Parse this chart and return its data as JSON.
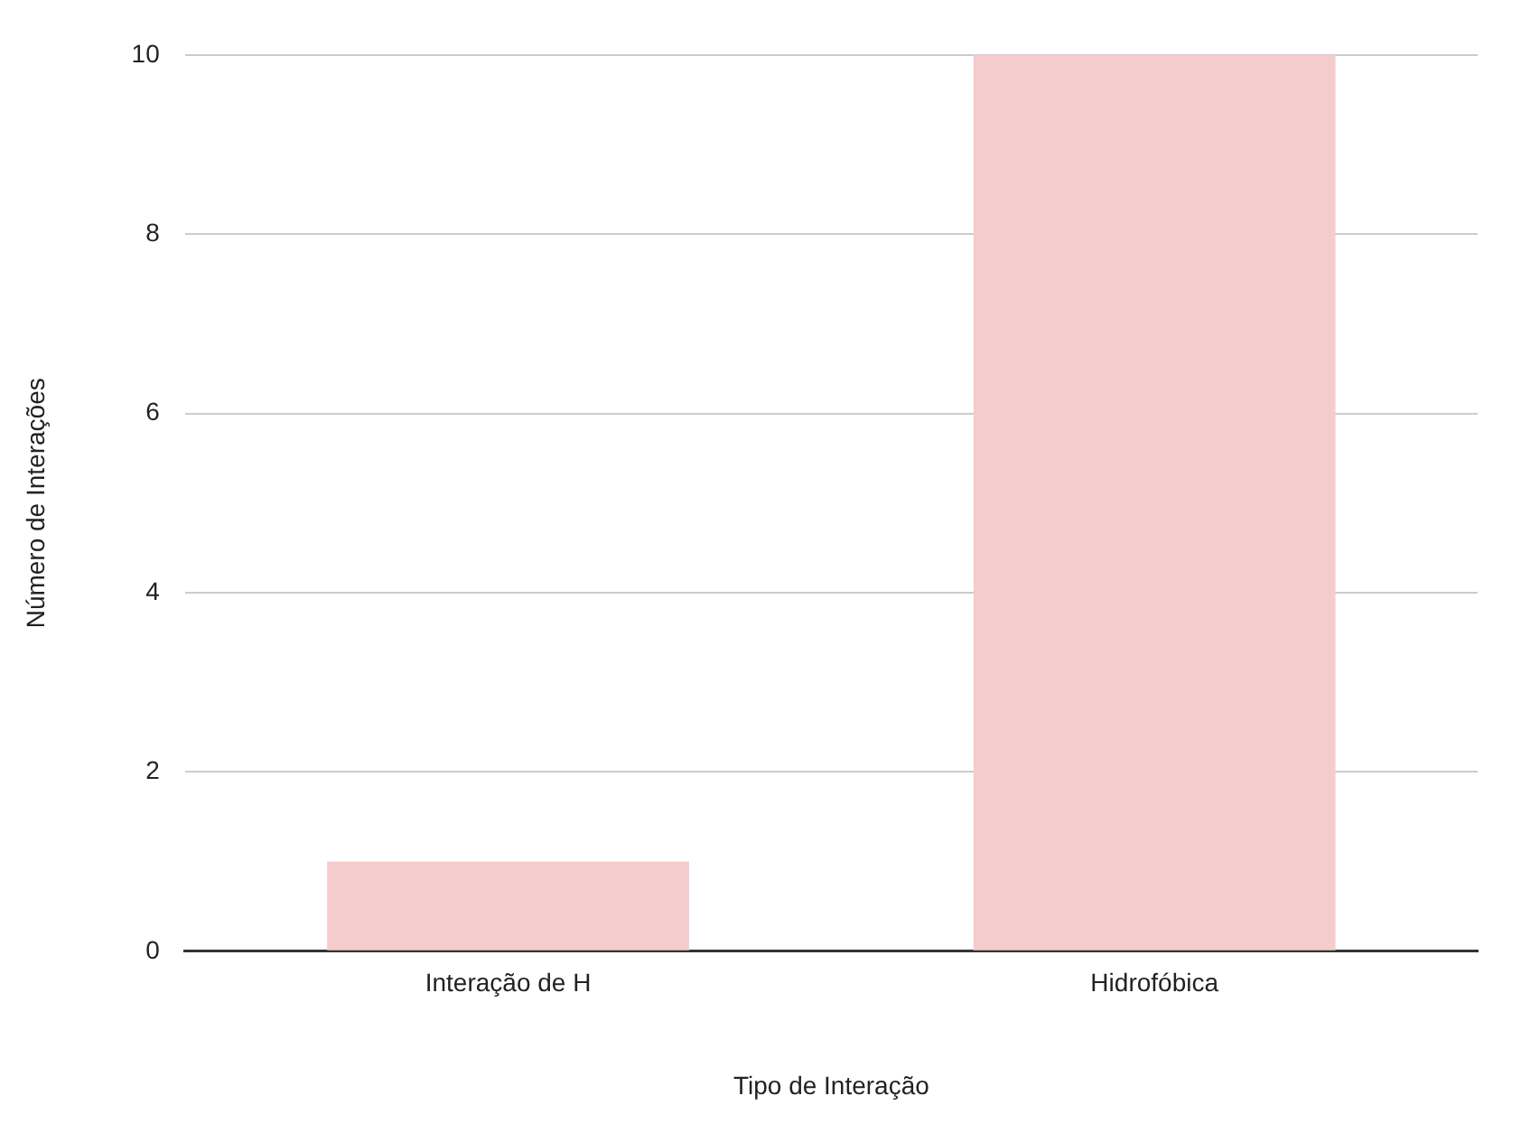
{
  "chart_data": {
    "type": "bar",
    "xlabel": "Tipo de Interação",
    "ylabel": "Número de Interações",
    "categories": [
      "Interação de H",
      "Hidrofóbica"
    ],
    "values": [
      1,
      10
    ],
    "color": "#f4cccc",
    "ylim": [
      0,
      10
    ],
    "yticks": [
      0,
      2,
      4,
      6,
      8,
      10
    ],
    "grid": "y",
    "legend": false
  }
}
